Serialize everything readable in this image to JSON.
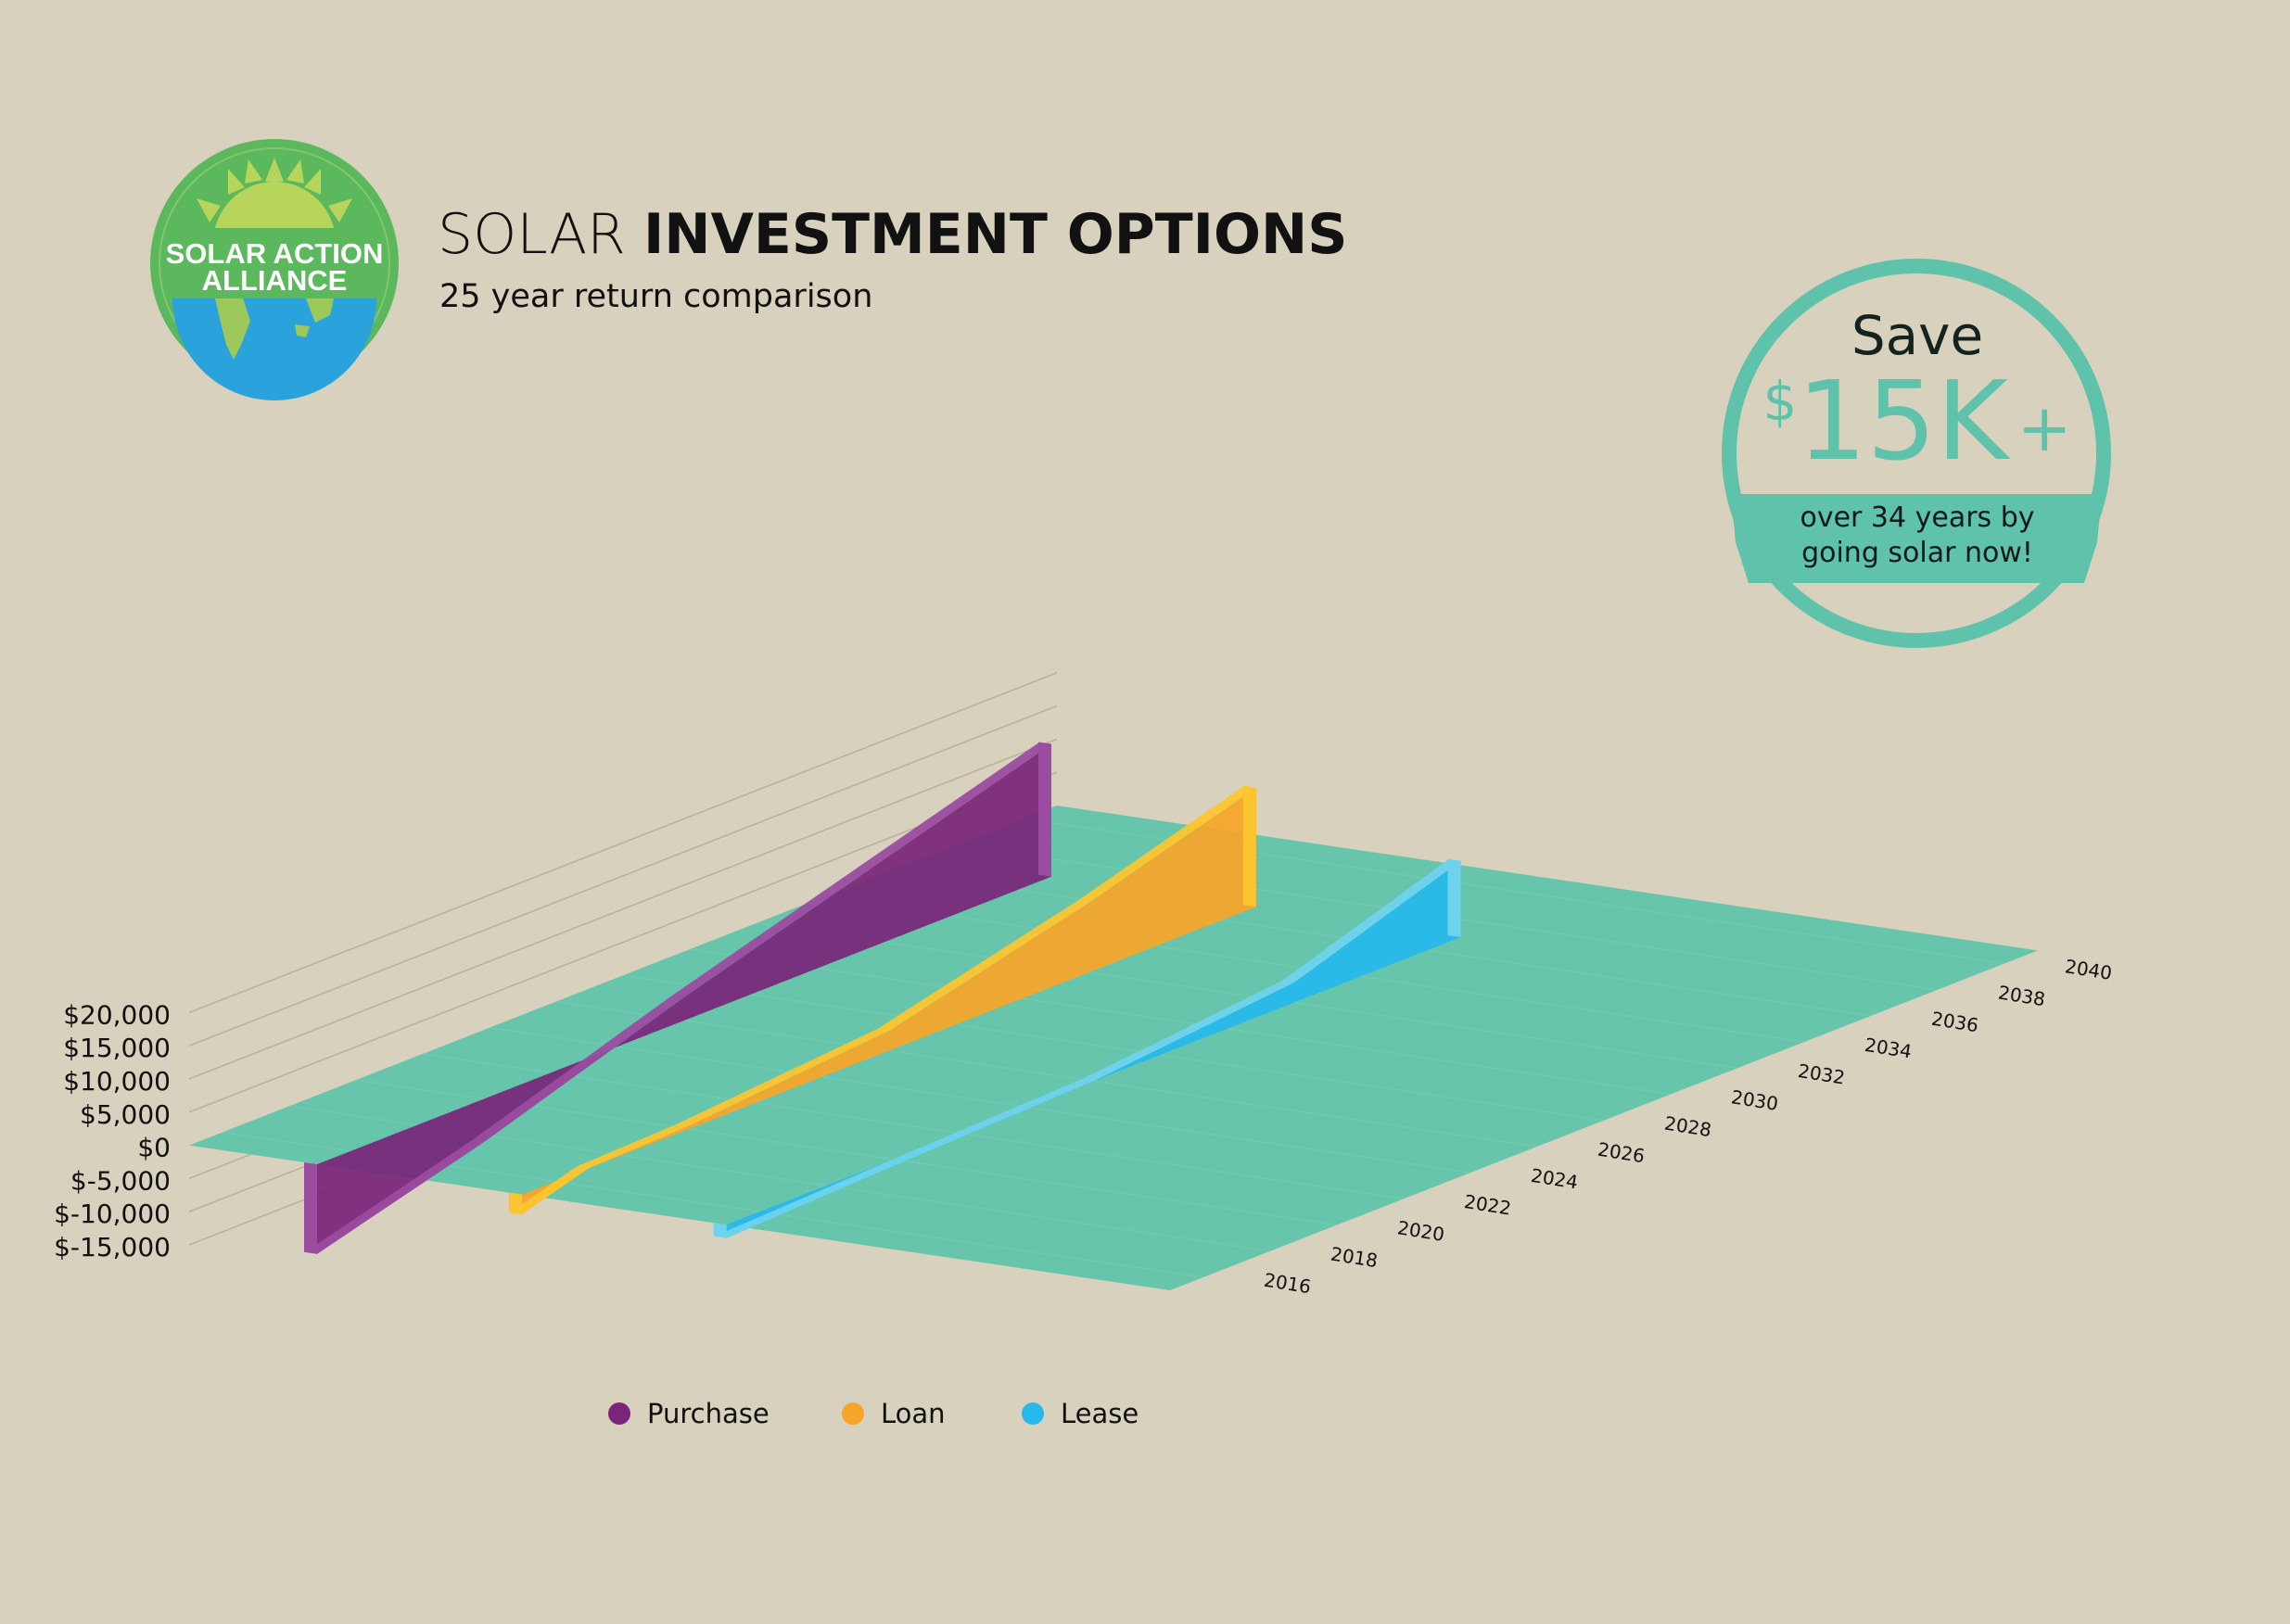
{
  "header": {
    "title_light": "SOLAR",
    "title_bold": "INVESTMENT OPTIONS",
    "subtitle": "25 year return comparison"
  },
  "logo": {
    "line1": "SOLAR ACTION",
    "line2": "ALLIANCE",
    "icon": "sun-globe-icon"
  },
  "badge": {
    "save": "Save",
    "currency": "$",
    "amount": "15K",
    "plus": "+",
    "sub_line1": "over 34 years by",
    "sub_line2": "going solar now!"
  },
  "colors": {
    "background": "#d8d1bd",
    "plane": "#63c4aa",
    "purchase": "#7a267a",
    "loan": "#f7a52a",
    "lease": "#26b9ec",
    "badge": "#5fc2ab",
    "logo_green": "#5cb85c"
  },
  "chart_data": {
    "type": "area",
    "title": "SOLAR INVESTMENT OPTIONS",
    "subtitle": "25 year return comparison",
    "y_tick_labels": [
      "$20,000",
      "$15,000",
      "$10,000",
      "$5,000",
      "$0",
      "$-5,000",
      "$-10,000",
      "$-15,000"
    ],
    "y_ticks": [
      20000,
      15000,
      10000,
      5000,
      0,
      -5000,
      -10000,
      -15000
    ],
    "ylim": [
      -15000,
      20000
    ],
    "x_tick_labels": [
      "2016",
      "2018",
      "2020",
      "2022",
      "2024",
      "2026",
      "2028",
      "2030",
      "2032",
      "2034",
      "2036",
      "2038",
      "2040"
    ],
    "x_ticks": [
      2016,
      2018,
      2020,
      2022,
      2024,
      2026,
      2028,
      2030,
      2032,
      2034,
      2036,
      2038,
      2040
    ],
    "xlim": [
      2015,
      2041
    ],
    "legend_position": "bottom",
    "series": [
      {
        "name": "Purchase",
        "x": [
          2015,
          2020,
          2026,
          2032,
          2037
        ],
        "values": [
          -13500,
          -6500,
          3500,
          12500,
          20000
        ]
      },
      {
        "name": "Loan",
        "x": [
          2015,
          2017,
          2020,
          2026,
          2032,
          2037
        ],
        "values": [
          -3000,
          0,
          500,
          3000,
          10500,
          18000
        ]
      },
      {
        "name": "Lease",
        "x": [
          2015,
          2020,
          2026,
          2032,
          2037
        ],
        "values": [
          -2000,
          -1000,
          0,
          3000,
          11500
        ]
      }
    ]
  }
}
